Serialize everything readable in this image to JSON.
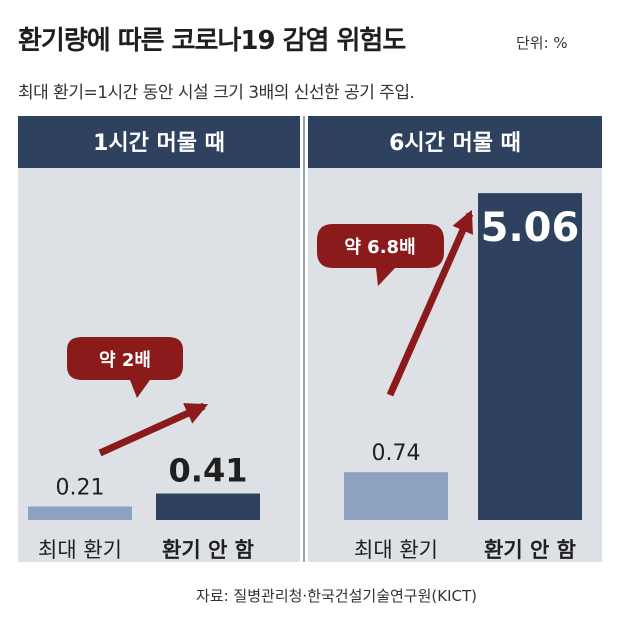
{
  "header": {
    "title": "환기량에 따른 코로나19 감염 위험도",
    "unit": "단위: %",
    "subtitle": "최대 환기=1시간 동안 시설 크기 3배의 신선한 공기 주입."
  },
  "source": "자료: 질병관리청·한국건설기술연구원(KICT)",
  "colors": {
    "panel_header": "#2e4260",
    "panel_bg": "#dde0e4",
    "divider": "#9aa4b0",
    "bar_max_ventilation": "#8da1c0",
    "bar_no_ventilation": "#2e4260",
    "arrow": "#8b1a1a",
    "callout": "#8b1a1a"
  },
  "chart_data": [
    {
      "type": "bar",
      "panel_title": "1시간 머물 때",
      "categories": [
        "최대 환기",
        "환기 안 함"
      ],
      "values": [
        0.21,
        0.41
      ],
      "value_labels": [
        "0.21",
        "0.41"
      ],
      "annotation": "약 2배"
    },
    {
      "type": "bar",
      "panel_title": "6시간 머물 때",
      "categories": [
        "최대 환기",
        "환기 안 함"
      ],
      "values": [
        0.74,
        5.06
      ],
      "value_labels": [
        "0.74",
        "5.06"
      ],
      "annotation": "약 6.8배"
    }
  ]
}
